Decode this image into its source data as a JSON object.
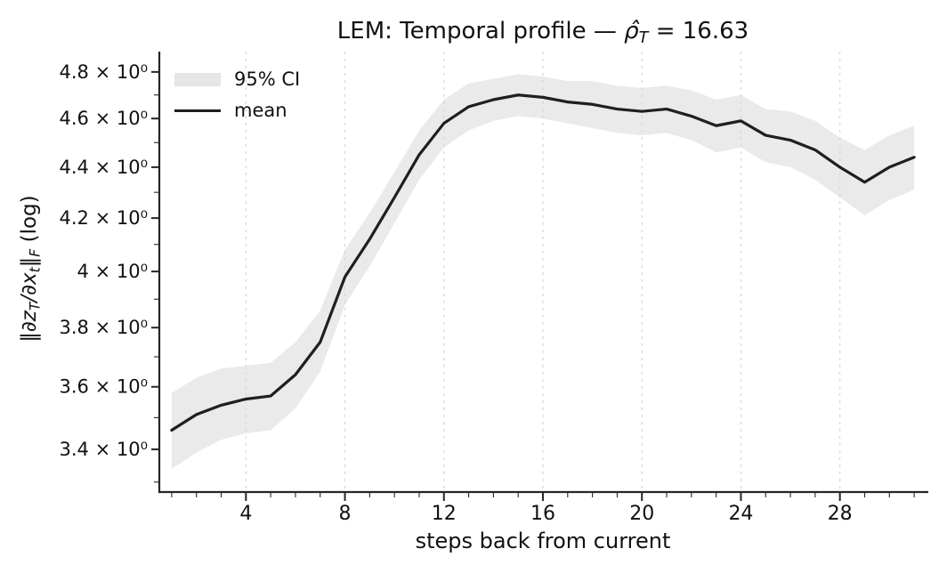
{
  "title": {
    "prefix": "LEM: Temporal profile — ",
    "rho_hat": "ρ̂",
    "rho_sub": "T",
    "suffix": " = 16.63"
  },
  "legend": {
    "ci_label": "95% CI",
    "mean_label": "mean"
  },
  "axes": {
    "xlabel": "steps back from current",
    "ylabel_parts": {
      "open_norm": "‖",
      "dz": "∂z",
      "sub_T": "T",
      "slash_dx": "/∂x",
      "sub_t": "t",
      "close_norm": "‖",
      "sub_F": "F",
      "tail": " (log)"
    }
  },
  "chart_data": {
    "type": "line",
    "title": "LEM: Temporal profile — ρ̂_T = 16.63",
    "xlabel": "steps back from current",
    "ylabel": "‖∂z_T/∂x_t‖_F (log)",
    "yscale": "log",
    "grid": "vertical-dashed",
    "legend_position": "upper-left",
    "x": [
      1,
      2,
      3,
      4,
      5,
      6,
      7,
      8,
      9,
      10,
      11,
      12,
      13,
      14,
      15,
      16,
      17,
      18,
      19,
      20,
      21,
      22,
      23,
      24,
      25,
      26,
      27,
      28,
      29,
      30,
      31
    ],
    "series": [
      {
        "name": "mean",
        "values": [
          3.46,
          3.51,
          3.54,
          3.56,
          3.57,
          3.64,
          3.75,
          3.98,
          4.12,
          4.28,
          4.45,
          4.58,
          4.65,
          4.68,
          4.7,
          4.69,
          4.67,
          4.66,
          4.64,
          4.63,
          4.64,
          4.61,
          4.57,
          4.59,
          4.53,
          4.51,
          4.47,
          4.4,
          4.34,
          4.4,
          4.44
        ]
      },
      {
        "name": "ci_upper_95",
        "values": [
          3.58,
          3.63,
          3.66,
          3.67,
          3.68,
          3.75,
          3.86,
          4.08,
          4.22,
          4.38,
          4.55,
          4.68,
          4.75,
          4.77,
          4.79,
          4.78,
          4.76,
          4.76,
          4.74,
          4.73,
          4.74,
          4.72,
          4.68,
          4.7,
          4.64,
          4.63,
          4.59,
          4.52,
          4.47,
          4.53,
          4.57
        ]
      },
      {
        "name": "ci_lower_95",
        "values": [
          3.34,
          3.39,
          3.43,
          3.45,
          3.46,
          3.53,
          3.65,
          3.88,
          4.02,
          4.18,
          4.35,
          4.48,
          4.55,
          4.59,
          4.61,
          4.6,
          4.58,
          4.56,
          4.54,
          4.53,
          4.54,
          4.51,
          4.46,
          4.48,
          4.42,
          4.4,
          4.35,
          4.28,
          4.21,
          4.27,
          4.31
        ]
      }
    ],
    "xlim": [
      0.5,
      31.5
    ],
    "ylim": [
      3.27,
      4.89
    ],
    "x_ticks": [
      4,
      8,
      12,
      16,
      20,
      24,
      28
    ],
    "x_tick_labels": [
      "4",
      "8",
      "12",
      "16",
      "20",
      "24",
      "28"
    ],
    "x_minor_ticks": [
      1,
      2,
      3,
      5,
      6,
      7,
      9,
      10,
      11,
      13,
      14,
      15,
      17,
      18,
      19,
      21,
      22,
      23,
      25,
      26,
      27,
      29,
      30,
      31
    ],
    "y_ticks": [
      3.4,
      3.6,
      3.8,
      4.0,
      4.2,
      4.4,
      4.6,
      4.8
    ],
    "y_tick_labels": [
      "3.4 × 10⁰",
      "3.6 × 10⁰",
      "3.8 × 10⁰",
      "4 × 10⁰",
      "4.2 × 10⁰",
      "4.4 × 10⁰",
      "4.6 × 10⁰",
      "4.8 × 10⁰"
    ],
    "y_minor_ticks": [
      3.3,
      3.5,
      3.7,
      3.9,
      4.1,
      4.3,
      4.5,
      4.7
    ],
    "colors": {
      "mean_line": "#1f1f1f",
      "ci_band": "#e6e6e6",
      "grid": "#d6d6d6",
      "spine": "#262626",
      "text": "#111111"
    }
  }
}
